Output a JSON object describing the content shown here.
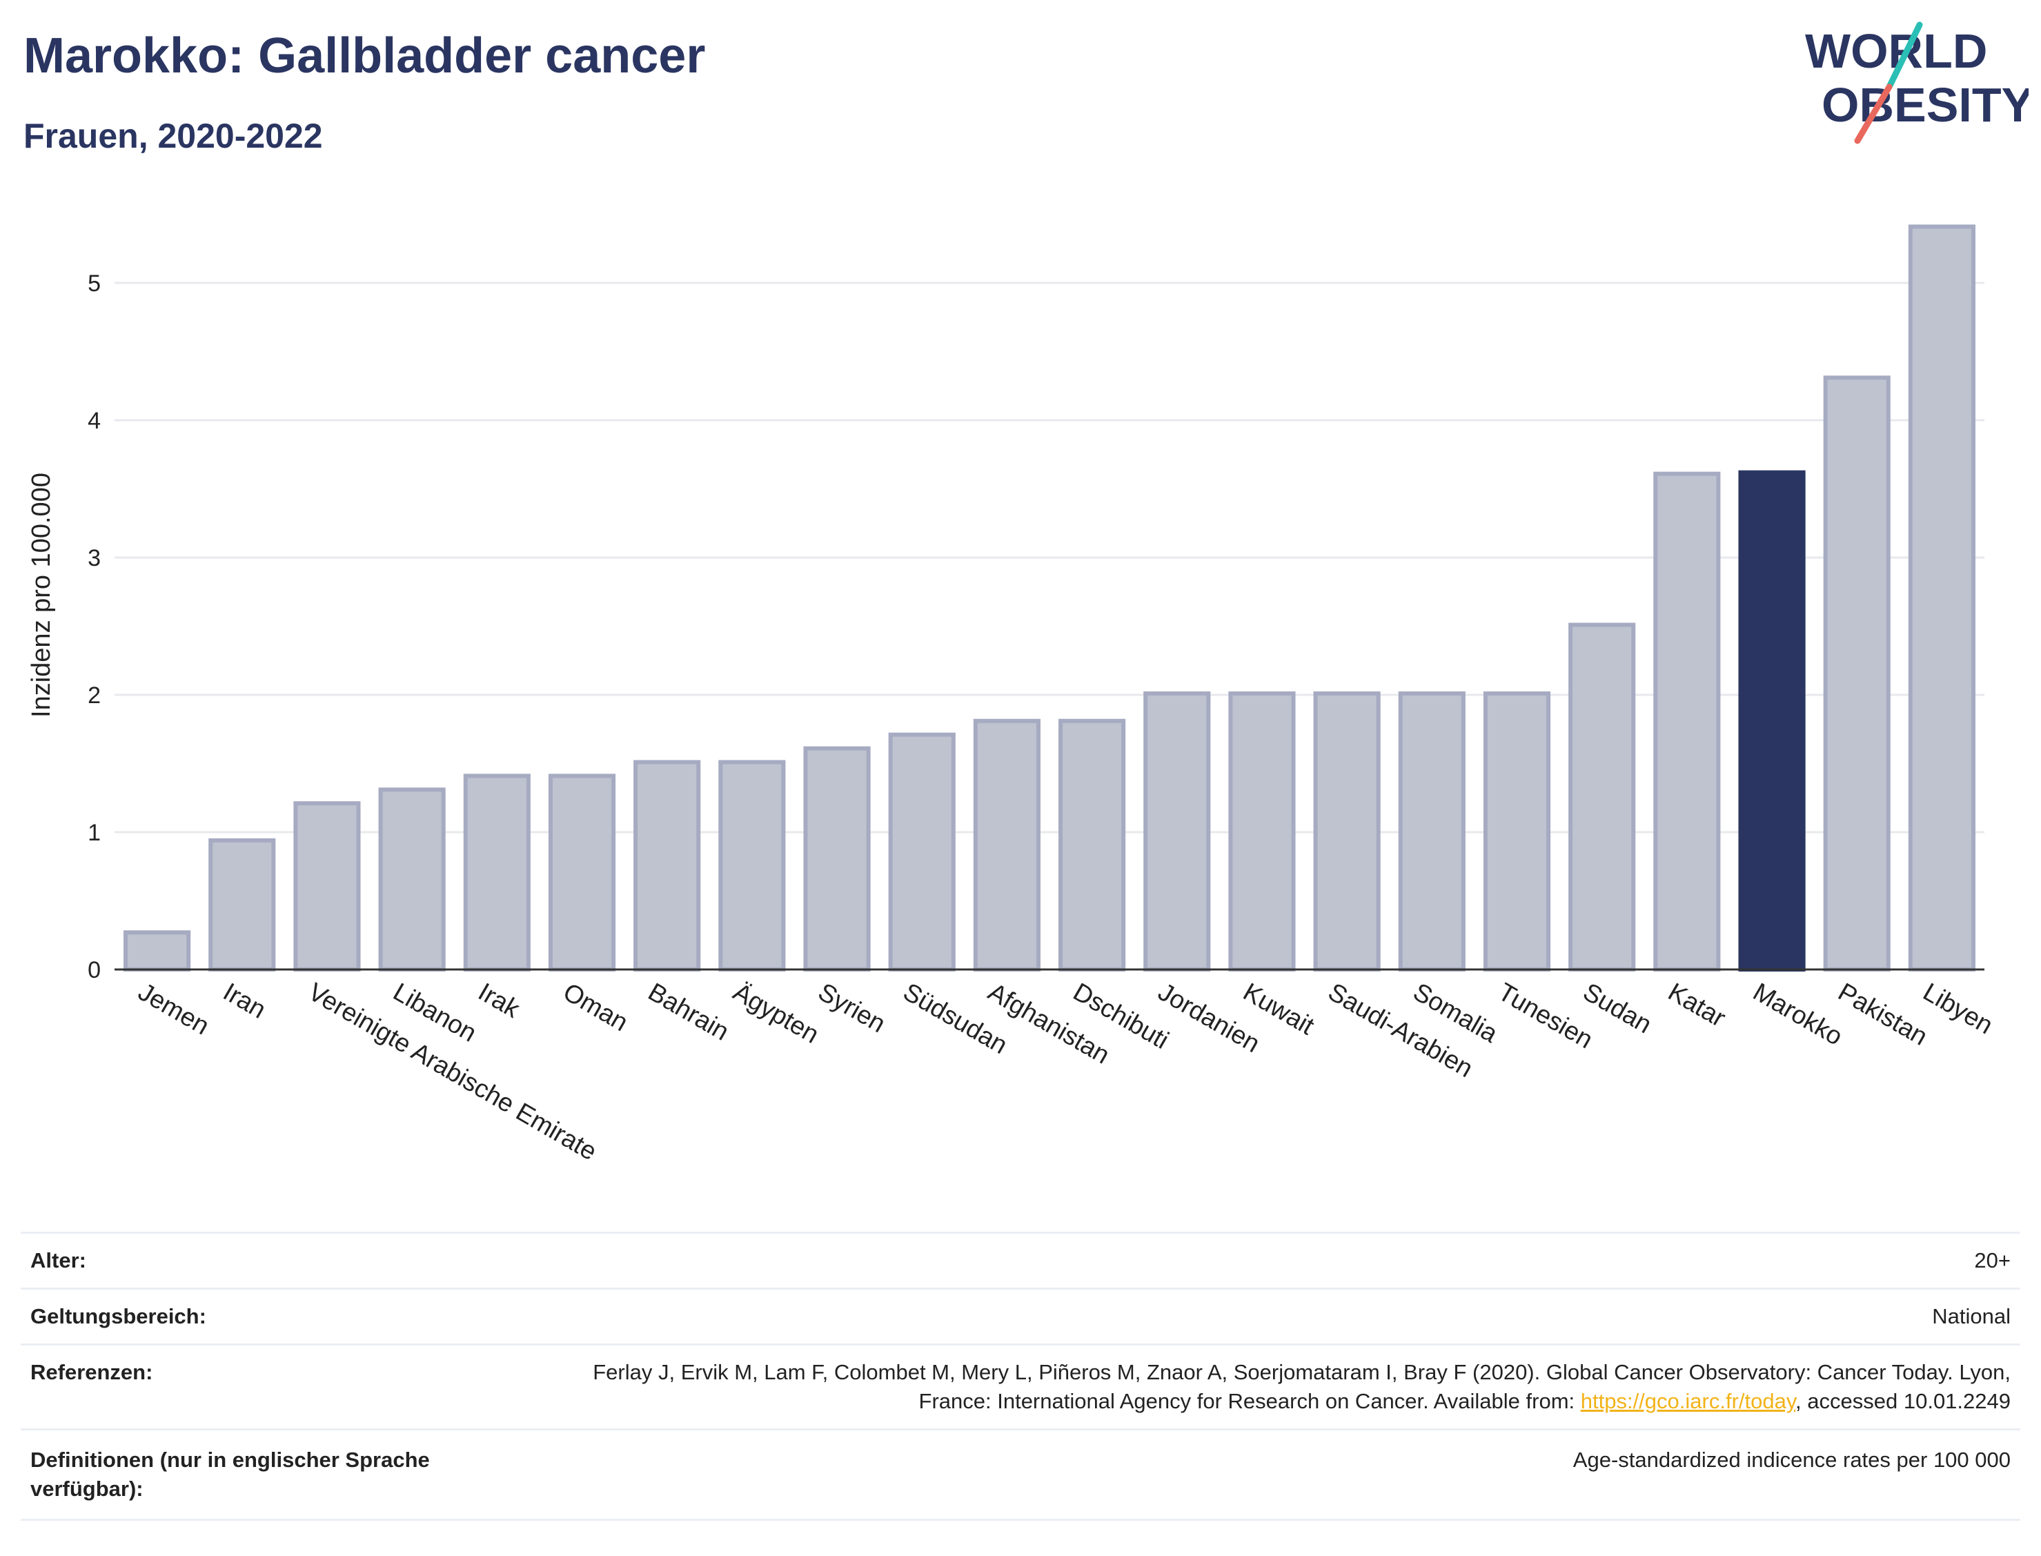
{
  "header": {
    "title": "Marokko: Gallbladder cancer",
    "subtitle": "Frauen, 2020-2022"
  },
  "logo": {
    "line1": "WORLD",
    "line2": "OBESITY",
    "slash_colors": [
      "#2bbfb5",
      "#e9685d"
    ],
    "text_color": "#2a3561"
  },
  "chart_data": {
    "type": "bar",
    "title": "Marokko: Gallbladder cancer",
    "subtitle": "Frauen, 2020-2022",
    "ylabel": "Inzidenz pro 100.000",
    "xlabel": "",
    "ylim": [
      0,
      5.6
    ],
    "yticks": [
      0,
      1,
      2,
      3,
      4,
      5
    ],
    "grid": true,
    "highlight": "Marokko",
    "colors": {
      "bar": "#bfc3d0",
      "bar_edge": "#a6abc2",
      "highlight": "#2a3561"
    },
    "categories": [
      "Jemen",
      "Iran",
      "Vereinigte Arabische Emirate",
      "Libanon",
      "Irak",
      "Oman",
      "Bahrain",
      "Ägypten",
      "Syrien",
      "Südsudan",
      "Afghanistan",
      "Dschibuti",
      "Jordanien",
      "Kuwait",
      "Saudi-Arabien",
      "Somalia",
      "Tunesien",
      "Sudan",
      "Katar",
      "Marokko",
      "Pakistan",
      "Libyen"
    ],
    "values": [
      0.27,
      0.94,
      1.21,
      1.31,
      1.41,
      1.41,
      1.51,
      1.51,
      1.61,
      1.71,
      1.81,
      1.81,
      2.01,
      2.01,
      2.01,
      2.01,
      2.01,
      2.51,
      3.61,
      3.62,
      4.31,
      5.41
    ]
  },
  "meta": {
    "rows": [
      {
        "label": "Alter:",
        "value": "20+"
      },
      {
        "label": "Geltungsbereich:",
        "value": "National"
      },
      {
        "label": "Referenzen:",
        "value": "Ferlay J, Ervik M, Lam F, Colombet M, Mery L, Piñeros M, Znaor A, Soerjomataram I, Bray F (2020). Global Cancer Observatory: Cancer Today. Lyon, France: International Agency for Research on Cancer. Available from: ",
        "link": "https://gco.iarc.fr/today",
        "suffix": ", accessed 10.01.2249"
      },
      {
        "label": "Definitionen (nur in englischer Sprache verfügbar):",
        "value": "Age-standardized indicence rates per 100 000"
      }
    ]
  }
}
